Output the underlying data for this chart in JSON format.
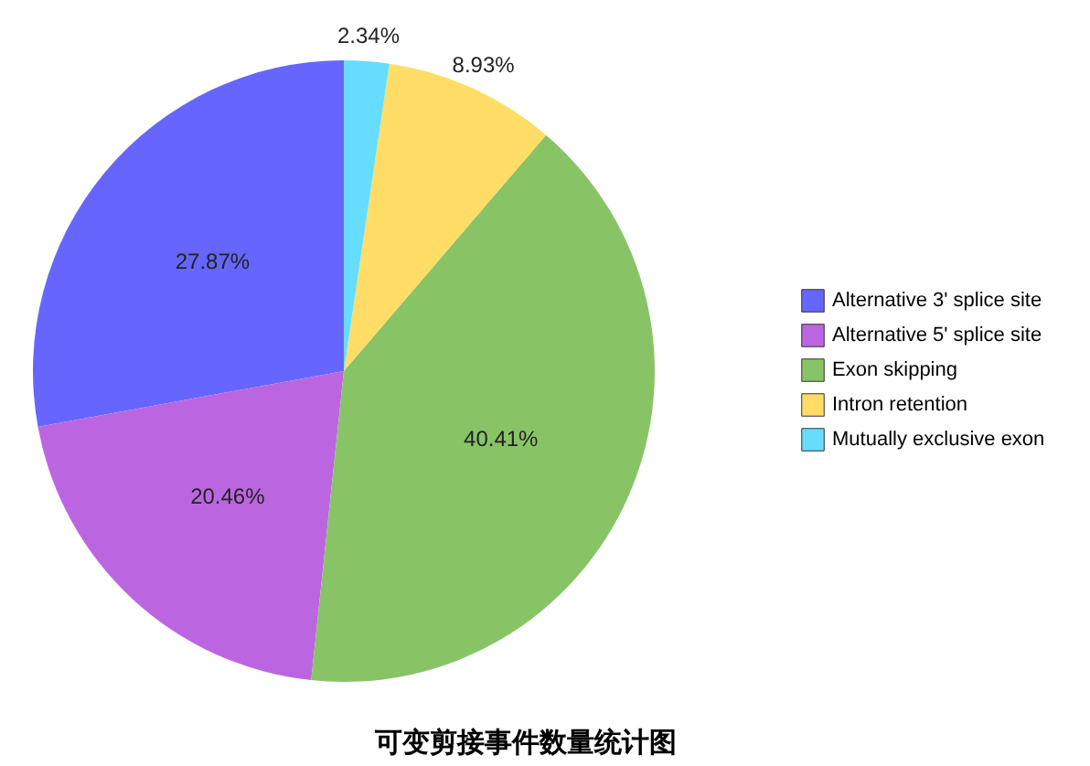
{
  "chart_data": {
    "type": "pie",
    "title": "可变剪接事件数量统计图",
    "categories": [
      "Alternative 3' splice site",
      "Alternative 5' splice site",
      "Exon skipping",
      "Intron retention",
      "Mutually exclusive exon"
    ],
    "values": [
      27.87,
      20.46,
      40.41,
      8.93,
      2.34
    ],
    "colors": [
      "#6666ff",
      "#bb66e0",
      "#88c466",
      "#ffdd66",
      "#66ddff"
    ],
    "value_labels": [
      "27.87%",
      "20.46%",
      "40.41%",
      "8.93%",
      "2.34%"
    ],
    "legend": "right"
  }
}
